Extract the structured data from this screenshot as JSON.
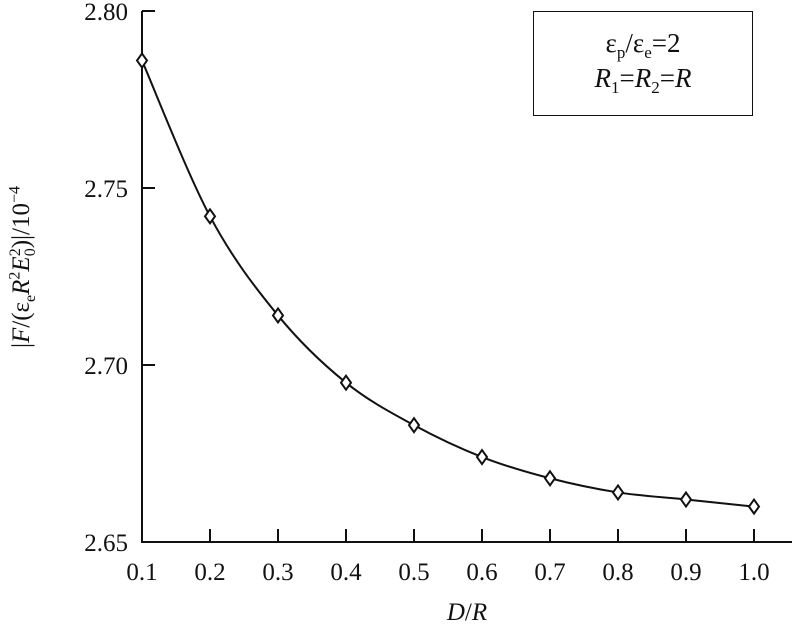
{
  "chart_data": {
    "type": "line",
    "title": "",
    "xlabel": "D/R",
    "ylabel": "|F/(ε_e R^2 E_0^2)|/10^-4",
    "xlim": [
      0.1,
      1.055
    ],
    "ylim": [
      2.65,
      2.8
    ],
    "x_ticks": [
      "0.1",
      "0.2",
      "0.3",
      "0.4",
      "0.5",
      "0.6",
      "0.7",
      "0.8",
      "0.9",
      "1.0"
    ],
    "y_ticks": [
      "2.65",
      "2.70",
      "2.75",
      "2.80"
    ],
    "grid": false,
    "marker": "diamond",
    "x": [
      0.1,
      0.2,
      0.3,
      0.4,
      0.5,
      0.6,
      0.7,
      0.8,
      0.9,
      1.0
    ],
    "series": [
      {
        "name": "εp/εe=2, R1=R2=R",
        "values": [
          2.786,
          2.742,
          2.714,
          2.695,
          2.683,
          2.674,
          2.668,
          2.664,
          2.662,
          2.66
        ]
      }
    ],
    "annotation": {
      "line1": "εp/εe=2",
      "line2": "R1=R2=R",
      "position": "top-right"
    }
  },
  "legend": {
    "eps": "ε",
    "p": "p",
    "slash": "/",
    "e": "e",
    "eq2": "=2",
    "R": "R",
    "one": "1",
    "two": "2",
    "eq": "="
  },
  "axes": {
    "xlabel_D": "D",
    "xlabel_slash": "/",
    "xlabel_R": "R",
    "ylabel": {
      "open": "|",
      "F": "F",
      "slash_paren": "/(",
      "eps": "ε",
      "e": "e",
      "R": "R",
      "sq": "2",
      "E": "E",
      "zero": "0",
      "close": ")|/10",
      "exp": "−4"
    }
  }
}
